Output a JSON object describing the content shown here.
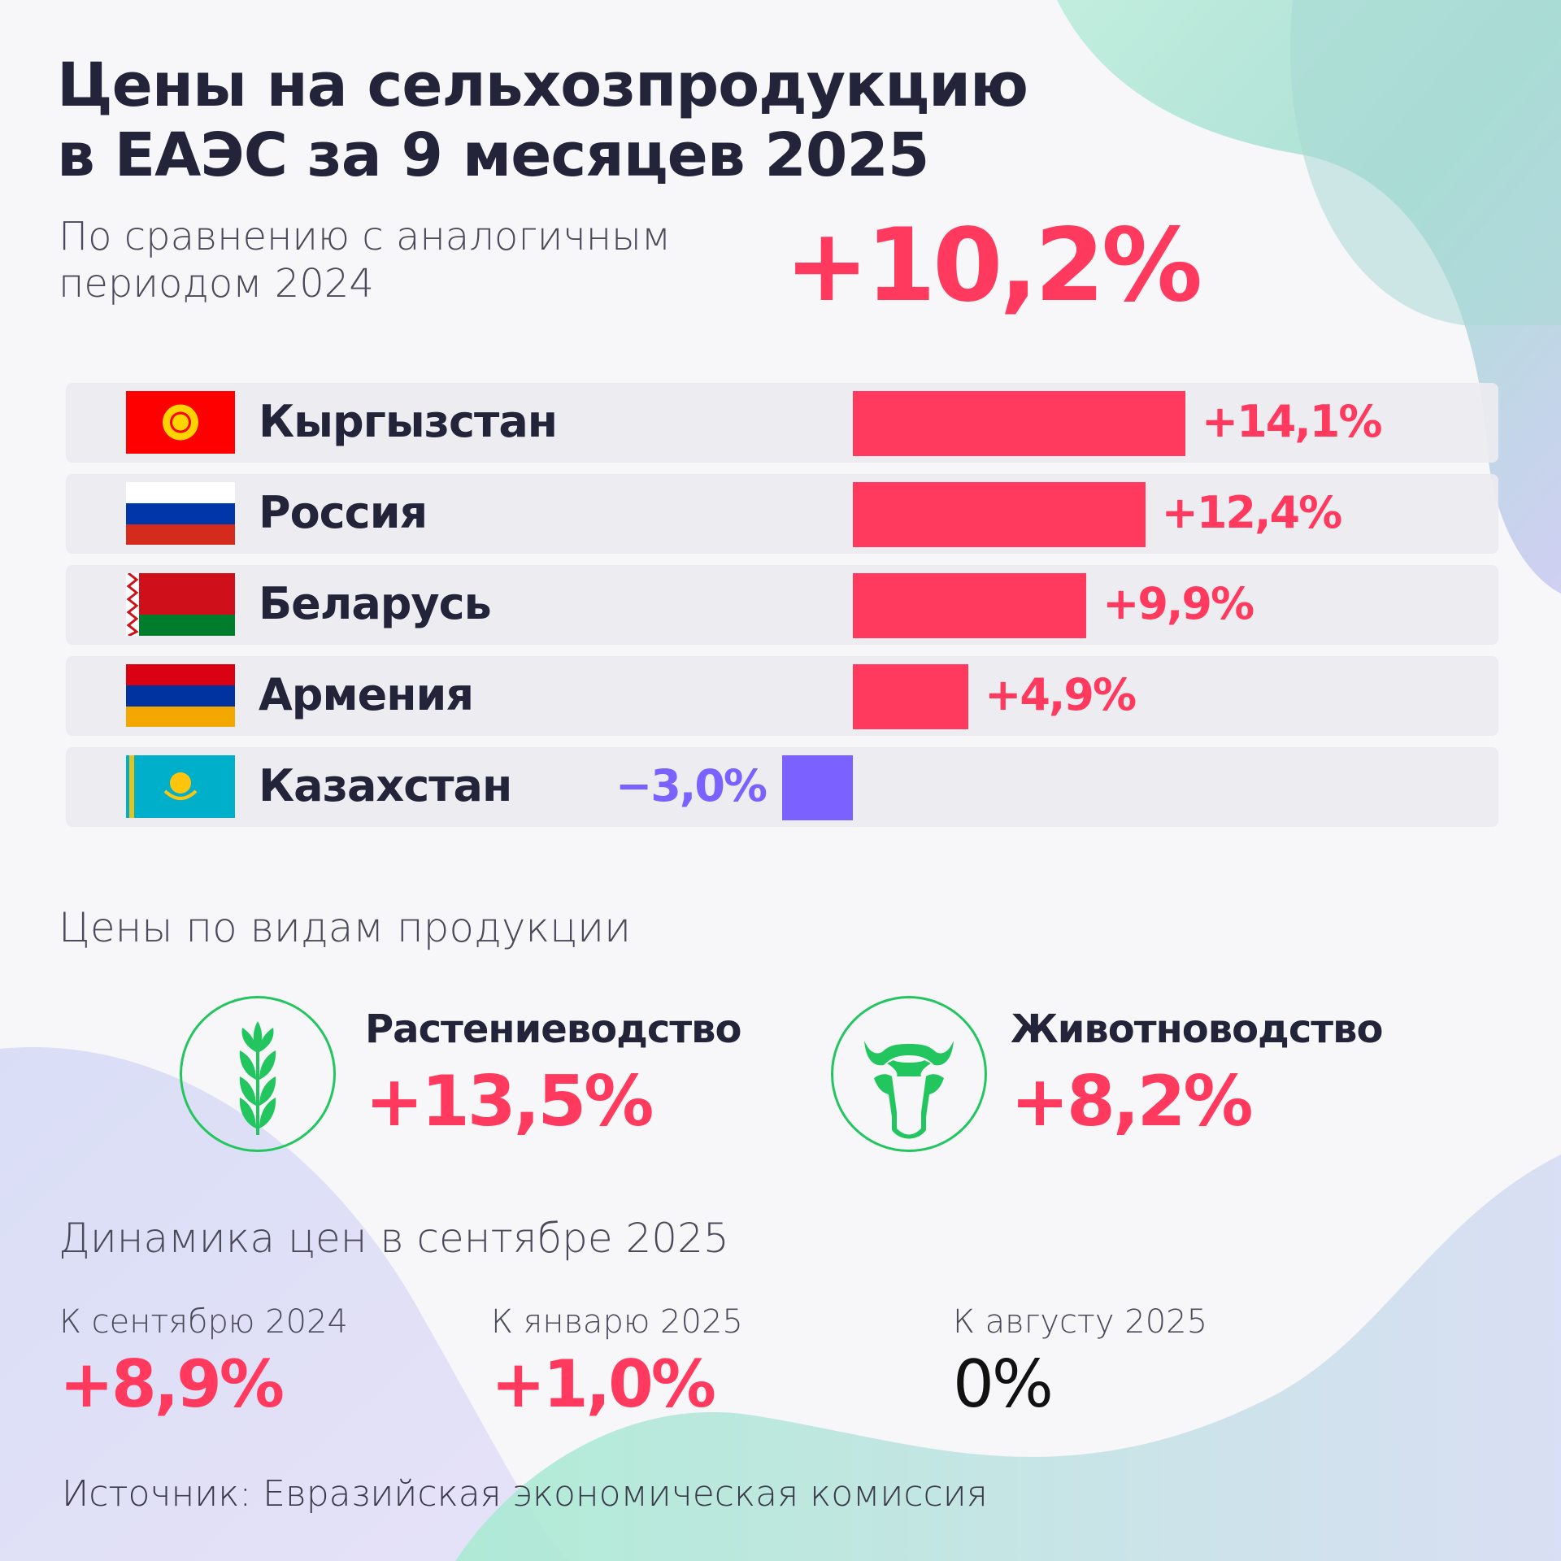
{
  "title": [
    "Цены на сельхозпродукцию",
    "в ЕАЭС за 9 месяцев 2025"
  ],
  "subtitle": [
    "По сравнению с аналогичным",
    "периодом 2024"
  ],
  "total_change": "+10,2%",
  "colors": {
    "positive": "#ff3a5e",
    "negative": "#7b61ff",
    "icon": "#22c55e",
    "text": "#23233a"
  },
  "chart_data": {
    "type": "bar",
    "orientation": "horizontal",
    "categories": [
      "Кыргызстан",
      "Россия",
      "Беларусь",
      "Армения",
      "Казахстан"
    ],
    "values": [
      14.1,
      12.4,
      9.9,
      4.9,
      -3.0
    ],
    "labels": [
      "+14,1%",
      "+12,4%",
      "+9,9%",
      "+4,9%",
      "−3,0%"
    ],
    "flags": [
      "kyrgyzstan-flag",
      "russia-flag",
      "belarus-flag",
      "armenia-flag",
      "kazakhstan-flag"
    ]
  },
  "products": {
    "heading": "Цены по видам продукции",
    "items": [
      {
        "label": "Растениеводство",
        "value": "+13,5%",
        "icon": "wheat-icon"
      },
      {
        "label": "Животноводство",
        "value": "+8,2%",
        "icon": "cow-icon"
      }
    ]
  },
  "dynamics": {
    "heading": "Динамика цен в сентябре 2025",
    "items": [
      {
        "label": "К сентябрю 2024",
        "value": "+8,9%"
      },
      {
        "label": "К январю 2025",
        "value": "+1,0%"
      },
      {
        "label": "К августу 2025",
        "value": "0%"
      }
    ]
  },
  "source": "Источник: Евразийская экономическая комиссия"
}
